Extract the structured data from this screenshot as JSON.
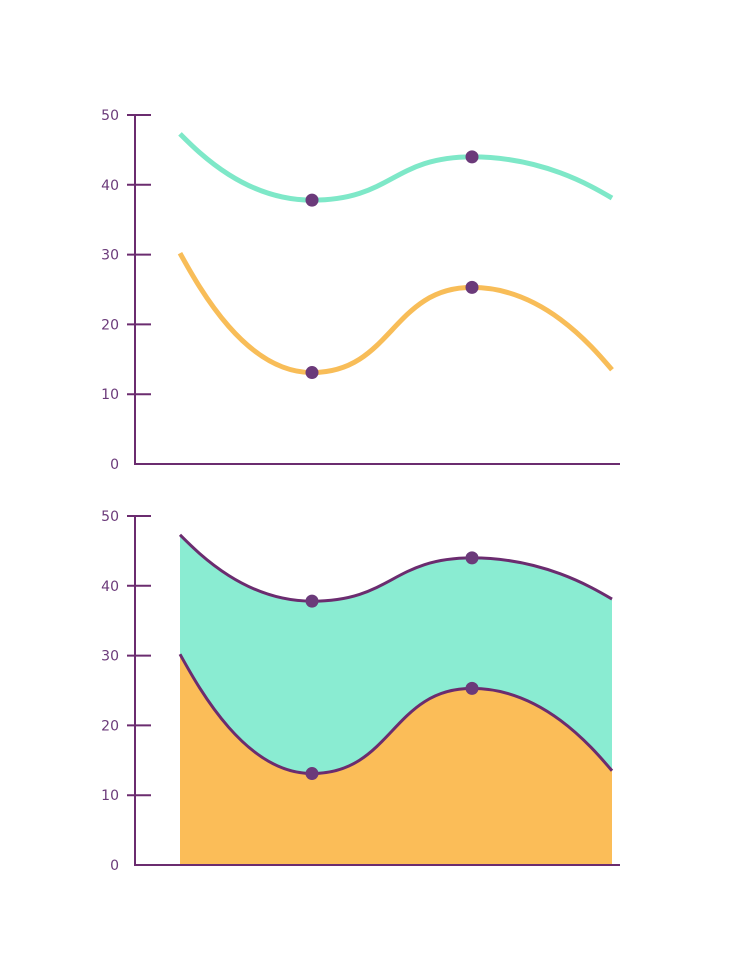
{
  "chart_data": [
    {
      "type": "line",
      "x": [
        0,
        1,
        2,
        3
      ],
      "series": [
        {
          "values": [
            47.3,
            37.8,
            44.0,
            38.1
          ],
          "color": "#7ee8c8",
          "markers": [
            1,
            2
          ]
        },
        {
          "values": [
            30.2,
            13.1,
            25.3,
            13.5
          ],
          "color": "#f8bd58",
          "markers": [
            1,
            2
          ]
        }
      ],
      "ylim": [
        0,
        50
      ],
      "yticks": [
        0,
        10,
        20,
        30,
        40,
        50
      ],
      "axis_color": "#6b2c6f",
      "marker_color": "#6b3a7a",
      "grid": false,
      "title": "",
      "xlabel": "",
      "ylabel": ""
    },
    {
      "type": "area",
      "x": [
        0,
        1,
        2,
        3
      ],
      "series": [
        {
          "values": [
            30.2,
            13.1,
            25.3,
            13.5
          ],
          "color": "#fbbd58",
          "markers": [
            1,
            2
          ]
        },
        {
          "values": [
            47.3,
            37.8,
            44.0,
            38.1
          ],
          "color": "#8aecd2",
          "markers": [
            1,
            2
          ]
        }
      ],
      "ylim": [
        0,
        50
      ],
      "yticks": [
        0,
        10,
        20,
        30,
        40,
        50
      ],
      "axis_color": "#6b2c6f",
      "outline_color": "#6b2c6f",
      "marker_color": "#6b3a7a",
      "grid": false,
      "title": "",
      "xlabel": "",
      "ylabel": ""
    }
  ]
}
